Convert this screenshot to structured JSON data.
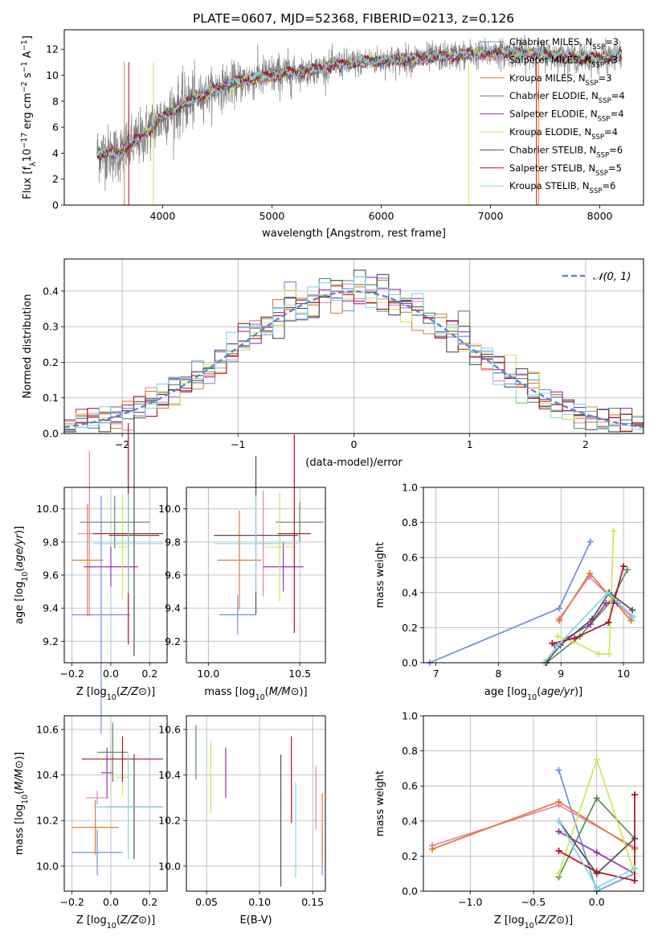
{
  "colors": {
    "Chabrier MILES": "#6f8fdd",
    "Salpeter MILES": "#e87fb5",
    "Kroupa MILES": "#e07b30",
    "Chabrier ELODIE": "#5a8a5a",
    "Salpeter ELODIE": "#9b30b0",
    "Kroupa ELODIE": "#cfe65a",
    "Chabrier STELIB": "#505050",
    "Salpeter STELIB": "#b01020",
    "Kroupa STELIB": "#80d8e6"
  },
  "chart_data": [
    {
      "id": "spectrum",
      "type": "line",
      "title": "PLATE=0607, MJD=52368, FIBERID=0213, z=0.126",
      "xlabel": "wavelength [Angstrom, rest frame]",
      "ylabel_parts": [
        "Flux [f",
        "λ",
        "10",
        "−17",
        " erg cm",
        "−2",
        " s",
        "−1",
        " A",
        "−1",
        "]"
      ],
      "xlim": [
        3100,
        8400
      ],
      "ylim": [
        0,
        13.5
      ],
      "xticks": [
        "4000",
        "5000",
        "6000",
        "7000",
        "8000"
      ],
      "yticks": [
        "0",
        "2",
        "4",
        "6",
        "8",
        "10",
        "12"
      ],
      "data_range": [
        3400,
        8200
      ],
      "data_shape": [
        [
          3400,
          4.0
        ],
        [
          3600,
          4.0
        ],
        [
          3800,
          5.2
        ],
        [
          4000,
          6.8
        ],
        [
          4200,
          7.8
        ],
        [
          4500,
          9.0
        ],
        [
          4800,
          9.7
        ],
        [
          5000,
          10.0
        ],
        [
          5300,
          10.3
        ],
        [
          5600,
          10.8
        ],
        [
          5900,
          11.1
        ],
        [
          6200,
          11.2
        ],
        [
          6500,
          11.4
        ],
        [
          6800,
          11.6
        ],
        [
          7100,
          11.7
        ],
        [
          7400,
          11.7
        ],
        [
          7700,
          11.4
        ],
        [
          8000,
          11.3
        ],
        [
          8200,
          11.5
        ]
      ],
      "legend": [
        {
          "name": "Chabrier MILES",
          "nssp": "3"
        },
        {
          "name": "Salpeter MILES",
          "nssp": "3"
        },
        {
          "name": "Kroupa MILES",
          "nssp": "3"
        },
        {
          "name": "Chabrier ELODIE",
          "nssp": "4"
        },
        {
          "name": "Salpeter ELODIE",
          "nssp": "4"
        },
        {
          "name": "Kroupa ELODIE",
          "nssp": "4"
        },
        {
          "name": "Chabrier STELIB",
          "nssp": "6"
        },
        {
          "name": "Salpeter STELIB",
          "nssp": "5"
        },
        {
          "name": "Kroupa STELIB",
          "nssp": "6"
        }
      ]
    },
    {
      "id": "residuals",
      "type": "step",
      "xlabel": "(data-model)/error",
      "ylabel": "Normed distribution",
      "xlim": [
        -2.5,
        2.5
      ],
      "ylim": [
        0,
        0.49
      ],
      "xticks": [
        "−2",
        "−1",
        "0",
        "1",
        "2"
      ],
      "yticks": [
        "0.0",
        "0.1",
        "0.2",
        "0.3",
        "0.4"
      ],
      "bin_width": 0.1,
      "gaussian_label": "𝒩(0, 1)",
      "gaussian_color": "#5b86d4"
    },
    {
      "id": "age_vs_Z",
      "type": "errorbar",
      "xlabel": "Z [log10(Z/Z⊙)]",
      "ylabel": "age [log10(age/yr)]",
      "xlim": [
        -0.24,
        0.29
      ],
      "ylim": [
        9.07,
        10.13
      ],
      "xticks": [
        "−0.2",
        "0.0",
        "0.2"
      ],
      "yticks": [
        "9.2",
        "9.4",
        "9.6",
        "9.8",
        "10.0"
      ],
      "points": [
        {
          "m": "Chabrier MILES",
          "x": -0.05,
          "xerr": 0.15,
          "y": 9.36,
          "yerr": 0.72
        },
        {
          "m": "Salpeter MILES",
          "x": -0.11,
          "xerr": 0.06,
          "y": 9.85,
          "yerr": 0.5
        },
        {
          "m": "Kroupa MILES",
          "x": -0.12,
          "xerr": 0.08,
          "y": 9.69,
          "yerr": 0.34
        },
        {
          "m": "Chabrier ELODIE",
          "x": 0.02,
          "xerr": 0.18,
          "y": 9.92,
          "yerr": 0.16
        },
        {
          "m": "Salpeter ELODIE",
          "x": 0.0,
          "xerr": 0.14,
          "y": 9.65,
          "yerr": 0.12
        },
        {
          "m": "Kroupa ELODIE",
          "x": 0.06,
          "xerr": 0.02,
          "y": 9.77,
          "yerr": 0.32
        },
        {
          "m": "Chabrier STELIB",
          "x": 0.12,
          "xerr": 0.13,
          "y": 9.84,
          "yerr": 0.73
        },
        {
          "m": "Salpeter STELIB",
          "x": 0.09,
          "xerr": 0.18,
          "y": 9.85,
          "yerr": 0.67
        },
        {
          "m": "Kroupa STELIB",
          "x": 0.09,
          "xerr": 0.18,
          "y": 9.79,
          "yerr": 0.3
        }
      ]
    },
    {
      "id": "age_vs_mass",
      "type": "errorbar",
      "xlabel": "mass [log10(M/M⊙)]",
      "ylabel": "",
      "xlim": [
        9.88,
        10.64
      ],
      "ylim": [
        9.07,
        10.13
      ],
      "xticks": [
        "10.0",
        "10.5"
      ],
      "yticks": [
        "9.2",
        "9.4",
        "9.6",
        "9.8",
        "10.0"
      ],
      "points": [
        {
          "m": "Chabrier MILES",
          "x": 10.16,
          "xerr": 0.1,
          "y": 9.36,
          "yerr": 0.12
        },
        {
          "m": "Salpeter MILES",
          "x": 10.3,
          "xerr": 0.03,
          "y": 9.79,
          "yerr": 0.32
        },
        {
          "m": "Kroupa MILES",
          "x": 10.17,
          "xerr": 0.12,
          "y": 9.69,
          "yerr": 0.3
        },
        {
          "m": "Chabrier ELODIE",
          "x": 10.5,
          "xerr": 0.13,
          "y": 9.92,
          "yerr": 0.12
        },
        {
          "m": "Salpeter ELODIE",
          "x": 10.41,
          "xerr": 0.11,
          "y": 9.65,
          "yerr": 0.15
        },
        {
          "m": "Kroupa ELODIE",
          "x": 10.39,
          "xerr": 0.08,
          "y": 9.77,
          "yerr": 0.33
        },
        {
          "m": "Chabrier STELIB",
          "x": 10.26,
          "xerr": 0.23,
          "y": 9.84,
          "yerr": 0.48
        },
        {
          "m": "Salpeter STELIB",
          "x": 10.47,
          "xerr": 0.09,
          "y": 9.85,
          "yerr": 0.6
        },
        {
          "m": "Kroupa STELIB",
          "x": 10.26,
          "xerr": 0.23,
          "y": 9.79,
          "yerr": 0.29
        }
      ]
    },
    {
      "id": "weight_vs_age",
      "type": "line",
      "xlabel": "age [log10(age/yr)]",
      "ylabel": "mass weight",
      "xlim": [
        6.8,
        10.32
      ],
      "ylim": [
        0,
        1.0
      ],
      "xticks": [
        "7",
        "8",
        "9",
        "10"
      ],
      "yticks": [
        "0.0",
        "0.2",
        "0.4",
        "0.6",
        "0.8",
        "1.0"
      ],
      "series": [
        {
          "m": "Chabrier MILES",
          "x": [
            6.9,
            8.97,
            9.47
          ],
          "y": [
            0.0,
            0.31,
            0.69
          ]
        },
        {
          "m": "Salpeter MILES",
          "x": [
            8.97,
            9.45,
            10.13
          ],
          "y": [
            0.25,
            0.49,
            0.26
          ]
        },
        {
          "m": "Kroupa MILES",
          "x": [
            8.97,
            9.46,
            10.12
          ],
          "y": [
            0.24,
            0.51,
            0.24
          ]
        },
        {
          "m": "Chabrier ELODIE",
          "x": [
            8.77,
            9.3,
            9.8,
            10.06
          ],
          "y": [
            0.0,
            0.15,
            0.35,
            0.53
          ]
        },
        {
          "m": "Salpeter ELODIE",
          "x": [
            8.9,
            9.47,
            9.72,
            9.9
          ],
          "y": [
            0.1,
            0.22,
            0.34,
            0.34
          ]
        },
        {
          "m": "Kroupa ELODIE",
          "x": [
            8.95,
            9.2,
            9.6,
            9.77,
            9.84
          ],
          "y": [
            0.15,
            0.12,
            0.05,
            0.05,
            0.75
          ]
        },
        {
          "m": "Chabrier STELIB",
          "x": [
            8.76,
            8.99,
            9.5,
            9.77,
            10.14
          ],
          "y": [
            0.0,
            0.1,
            0.25,
            0.4,
            0.3
          ]
        },
        {
          "m": "Salpeter STELIB",
          "x": [
            8.86,
            9.22,
            9.76,
            10.0
          ],
          "y": [
            0.11,
            0.14,
            0.23,
            0.55
          ]
        },
        {
          "m": "Kroupa STELIB",
          "x": [
            8.73,
            8.95,
            9.75,
            10.16
          ],
          "y": [
            0.0,
            0.1,
            0.4,
            0.26
          ]
        }
      ]
    },
    {
      "id": "mass_vs_Z",
      "type": "errorbar",
      "xlabel": "Z [log10(Z/Z⊙)]",
      "ylabel": "mass [log10(M/M⊙)]",
      "xlim": [
        -0.24,
        0.29
      ],
      "ylim": [
        9.89,
        10.66
      ],
      "xticks": [
        "−0.2",
        "0.0",
        "0.2"
      ],
      "yticks": [
        "10.0",
        "10.2",
        "10.4",
        "10.6"
      ],
      "points": [
        {
          "m": "Chabrier MILES",
          "x": -0.07,
          "xerr": 0.13,
          "y": 10.06,
          "yerr": 0.1
        },
        {
          "m": "Salpeter MILES",
          "x": -0.07,
          "xerr": 0.06,
          "y": 10.3,
          "yerr": 0.03
        },
        {
          "m": "Kroupa MILES",
          "x": -0.08,
          "xerr": 0.12,
          "y": 10.17,
          "yerr": 0.12
        },
        {
          "m": "Chabrier ELODIE",
          "x": 0.01,
          "xerr": 0.08,
          "y": 10.5,
          "yerr": 0.13
        },
        {
          "m": "Salpeter ELODIE",
          "x": -0.02,
          "xerr": 0.03,
          "y": 10.41,
          "yerr": 0.11
        },
        {
          "m": "Kroupa ELODIE",
          "x": 0.06,
          "xerr": 0.03,
          "y": 10.39,
          "yerr": 0.08
        },
        {
          "m": "Chabrier STELIB",
          "x": 0.12,
          "xerr": 0.15,
          "y": 10.26,
          "yerr": 0.23
        },
        {
          "m": "Salpeter STELIB",
          "x": 0.06,
          "xerr": 0.21,
          "y": 10.47,
          "yerr": 0.1
        },
        {
          "m": "Kroupa STELIB",
          "x": 0.09,
          "xerr": 0.18,
          "y": 10.26,
          "yerr": 0.23
        }
      ]
    },
    {
      "id": "mass_vs_EBV",
      "type": "errorbar",
      "xlabel": "E(B-V)",
      "ylabel": "",
      "xlim": [
        0.031,
        0.162
      ],
      "ylim": [
        9.89,
        10.66
      ],
      "xticks": [
        "0.05",
        "0.10",
        "0.15"
      ],
      "yticks": [
        "10.0",
        "10.2",
        "10.4",
        "10.6"
      ],
      "points": [
        {
          "m": "Chabrier MILES",
          "x": 0.159,
          "xerr": 0,
          "y": 10.06,
          "yerr": 0.1
        },
        {
          "m": "Salpeter MILES",
          "x": 0.153,
          "xerr": 0,
          "y": 10.3,
          "yerr": 0.14
        },
        {
          "m": "Kroupa MILES",
          "x": 0.159,
          "xerr": 0,
          "y": 10.17,
          "yerr": 0.15
        },
        {
          "m": "Chabrier ELODIE",
          "x": 0.04,
          "xerr": 0,
          "y": 10.5,
          "yerr": 0.12
        },
        {
          "m": "Salpeter ELODIE",
          "x": 0.068,
          "xerr": 0,
          "y": 10.41,
          "yerr": 0.11
        },
        {
          "m": "Kroupa ELODIE",
          "x": 0.054,
          "xerr": 0,
          "y": 10.39,
          "yerr": 0.16
        },
        {
          "m": "Chabrier STELIB",
          "x": 0.12,
          "xerr": 0,
          "y": 10.2,
          "yerr": 0.29
        },
        {
          "m": "Salpeter STELIB",
          "x": 0.13,
          "xerr": 0,
          "y": 10.38,
          "yerr": 0.19
        },
        {
          "m": "Kroupa STELIB",
          "x": 0.134,
          "xerr": 0,
          "y": 10.16,
          "yerr": 0.21
        }
      ]
    },
    {
      "id": "weight_vs_Z",
      "type": "line",
      "xlabel": "Z [log10(Z/Z⊙)]",
      "ylabel": "mass weight",
      "xlim": [
        -1.37,
        0.37
      ],
      "ylim": [
        0,
        1.0
      ],
      "xticks": [
        "−1.0",
        "−0.5",
        "0.0"
      ],
      "yticks": [
        "0.0",
        "0.2",
        "0.4",
        "0.6",
        "0.8",
        "1.0"
      ],
      "series": [
        {
          "m": "Chabrier MILES",
          "x": [
            -0.3,
            0.0,
            0.3
          ],
          "y": [
            0.69,
            0.0,
            0.1
          ]
        },
        {
          "m": "Salpeter MILES",
          "x": [
            -1.3,
            -0.3,
            0.3
          ],
          "y": [
            0.26,
            0.49,
            0.25
          ]
        },
        {
          "m": "Kroupa MILES",
          "x": [
            -1.3,
            -0.3,
            0.3
          ],
          "y": [
            0.24,
            0.51,
            0.24
          ]
        },
        {
          "m": "Chabrier ELODIE",
          "x": [
            -0.3,
            0.0,
            0.3
          ],
          "y": [
            0.08,
            0.53,
            0.3
          ]
        },
        {
          "m": "Salpeter ELODIE",
          "x": [
            -0.3,
            0.0,
            0.3
          ],
          "y": [
            0.34,
            0.22,
            0.1
          ]
        },
        {
          "m": "Kroupa ELODIE",
          "x": [
            -0.3,
            0.0,
            0.3
          ],
          "y": [
            0.1,
            0.75,
            0.1
          ]
        },
        {
          "m": "Chabrier STELIB",
          "x": [
            -0.3,
            0.0,
            0.3
          ],
          "y": [
            0.4,
            0.1,
            0.3
          ]
        },
        {
          "m": "Salpeter STELIB",
          "x": [
            -0.3,
            0.0,
            0.3,
            0.3
          ],
          "y": [
            0.23,
            0.11,
            0.06,
            0.55
          ]
        },
        {
          "m": "Kroupa STELIB",
          "x": [
            -0.3,
            0.0,
            0.3
          ],
          "y": [
            0.4,
            0.02,
            0.13
          ]
        }
      ]
    }
  ]
}
